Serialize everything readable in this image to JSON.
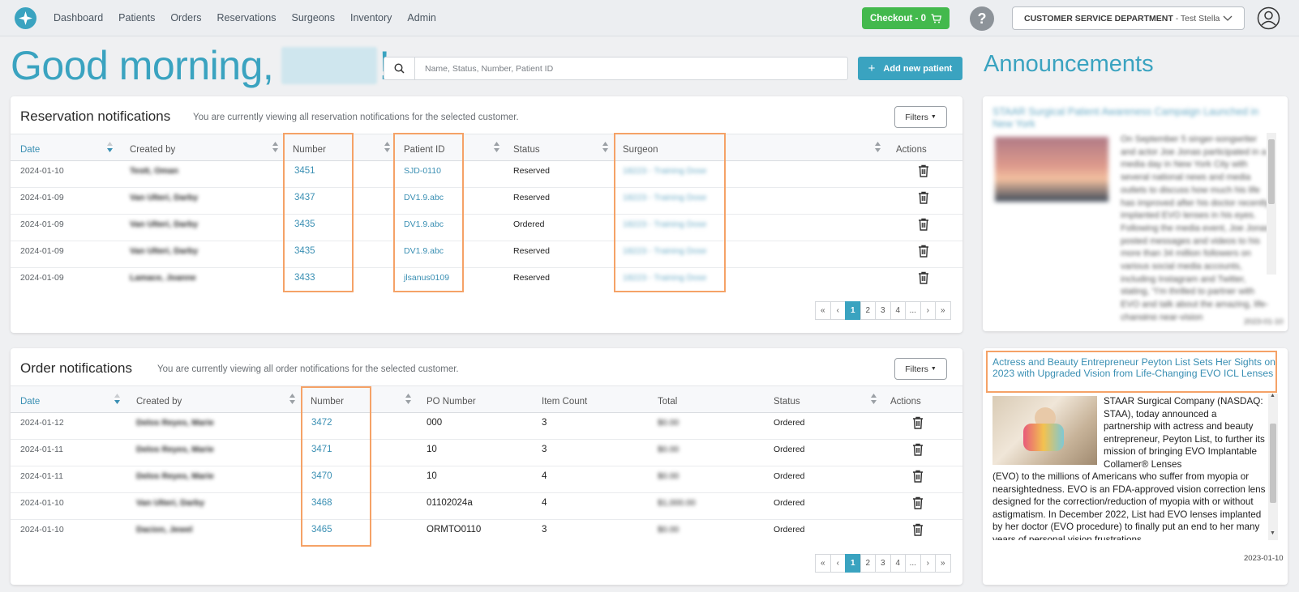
{
  "nav": {
    "items": [
      "Dashboard",
      "Patients",
      "Orders",
      "Reservations",
      "Surgeons",
      "Inventory",
      "Admin"
    ],
    "checkout_label": "Checkout - 0",
    "help_label": "?",
    "dept_name": "CUSTOMER SERVICE DEPARTMENT",
    "dept_user": "- Test Stella"
  },
  "greeting": {
    "text": "Good morning,",
    "suffix": "!"
  },
  "search": {
    "placeholder": "Name, Status, Number, Patient ID"
  },
  "add_patient_label": "Add new patient",
  "reservations": {
    "title": "Reservation notifications",
    "subtitle": "You are currently viewing all reservation notifications for the selected customer.",
    "filters_label": "Filters",
    "columns": [
      "Date",
      "Created by",
      "Number",
      "Patient ID",
      "Status",
      "Surgeon",
      "Actions"
    ],
    "rows": [
      {
        "date": "2024-01-10",
        "created_by": "Testt, Oman",
        "number": "3451",
        "patient_id": "SJD-0110",
        "status": "Reserved",
        "surgeon": "18223 - Training Dose"
      },
      {
        "date": "2024-01-09",
        "created_by": "Van Ulteri, Darby",
        "number": "3437",
        "patient_id": "DV1.9.abc",
        "status": "Reserved",
        "surgeon": "18223 - Training Dose"
      },
      {
        "date": "2024-01-09",
        "created_by": "Van Ulteri, Darby",
        "number": "3435",
        "patient_id": "DV1.9.abc",
        "status": "Ordered",
        "surgeon": "18223 - Training Dose"
      },
      {
        "date": "2024-01-09",
        "created_by": "Van Ulteri, Darby",
        "number": "3435",
        "patient_id": "DV1.9.abc",
        "status": "Reserved",
        "surgeon": "18223 - Training Dose"
      },
      {
        "date": "2024-01-09",
        "created_by": "Lamace, Joanne",
        "number": "3433",
        "patient_id": "jlsanus0109",
        "status": "Reserved",
        "surgeon": "18223 - Training Dose"
      }
    ],
    "pager": [
      "«",
      "‹",
      "1",
      "2",
      "3",
      "4",
      "...",
      "›",
      "»"
    ]
  },
  "orders": {
    "title": "Order notifications",
    "subtitle": "You are currently viewing all order notifications for the selected customer.",
    "filters_label": "Filters",
    "columns": [
      "Date",
      "Created by",
      "Number",
      "PO Number",
      "Item Count",
      "Total",
      "Status",
      "Actions"
    ],
    "rows": [
      {
        "date": "2024-01-12",
        "created_by": "Delos Reyes, Marie",
        "number": "3472",
        "po": "000",
        "count": "3",
        "total": "$0.00",
        "status": "Ordered"
      },
      {
        "date": "2024-01-11",
        "created_by": "Delos Reyes, Marie",
        "number": "3471",
        "po": "10",
        "count": "3",
        "total": "$0.00",
        "status": "Ordered"
      },
      {
        "date": "2024-01-11",
        "created_by": "Delos Reyes, Marie",
        "number": "3470",
        "po": "10",
        "count": "4",
        "total": "$0.00",
        "status": "Ordered"
      },
      {
        "date": "2024-01-10",
        "created_by": "Van Ulteri, Darby",
        "number": "3468",
        "po": "01102024a",
        "count": "4",
        "total": "$1,000.00",
        "status": "Ordered"
      },
      {
        "date": "2024-01-10",
        "created_by": "Dacion, Jewel",
        "number": "3465",
        "po": "ORMTO0110",
        "count": "3",
        "total": "$0.00",
        "status": "Ordered"
      }
    ],
    "pager": [
      "«",
      "‹",
      "1",
      "2",
      "3",
      "4",
      "...",
      "›",
      "»"
    ]
  },
  "announcements": {
    "title": "Announcements",
    "card1": {
      "headline": "STAAR Surgical Patient Awareness Campaign Launched in New York",
      "body": "On September 5 singer-songwriter and actor Joe Jonas participated in a media day in New York City with several national news and media outlets to discuss how much his life has improved after his doctor recently implanted EVO lenses in his eyes. Following the media event, Joe Jonas posted messages and videos to his more than 34 million followers on various social media accounts, including Instagram and Twitter, stating, \"I'm thrilled to partner with EVO and talk about the amazing, life-changing near-vision",
      "date": "2023-01-10"
    },
    "card2": {
      "headline": "Actress and Beauty Entrepreneur Peyton List Sets Her Sights on 2023 with Upgraded Vision from Life-Changing EVO ICL Lenses",
      "body_side": "STAAR Surgical Company (NASDAQ: STAA), today announced a partnership with actress and beauty entrepreneur, Peyton List, to further its mission of bringing EVO Implantable Collamer® Lenses",
      "body_full": "(EVO) to the millions of Americans who suffer from myopia or nearsightedness. EVO is an FDA-approved vision correction lens designed for the correction/reduction of myopia with or without astigmatism. In December 2022, List had EVO lenses implanted by her doctor (EVO procedure) to finally put an end to her many years of personal vision frustrations",
      "date": "2023-01-10"
    }
  }
}
